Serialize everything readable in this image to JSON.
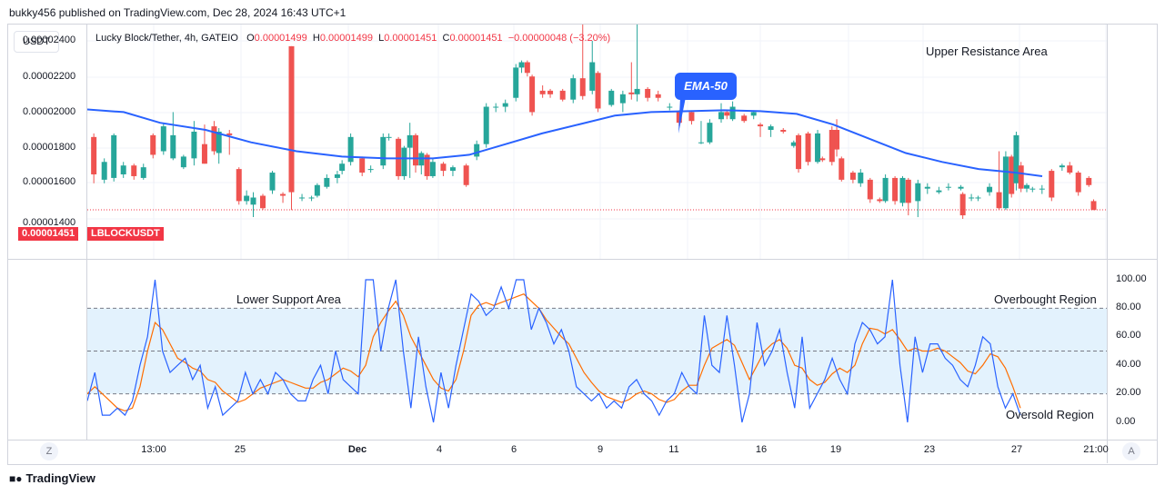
{
  "header": {
    "publisher_line": "bukky456 published on TradingView.com, Dec 28, 2024 16:43 UTC+1"
  },
  "toolbar": {
    "currency_button": "USDT"
  },
  "legend": {
    "symbol": "Lucky Block/Tether, 4h, GATEIO",
    "o_label": "O",
    "o_val": "0.00001499",
    "h_label": "H",
    "h_val": "0.00001499",
    "l_label": "L",
    "l_val": "0.00001451",
    "c_label": "C",
    "c_val": "0.00001451",
    "change": "−0.00000048 (−3.20%)"
  },
  "price_axis": {
    "ticks": [
      "0.00002400",
      "0.00002200",
      "0.00002000",
      "0.00001800",
      "0.00001600",
      "0.00001400"
    ]
  },
  "last_price": {
    "value": "0.00001451",
    "symbol": "LBLOCKUSDT"
  },
  "annotations": {
    "upper_resistance": "Upper Resistance Area",
    "ema_label": "EMA-50",
    "lower_support": "Lower Support Area",
    "overbought": "Overbought Region",
    "oversold": "Oversold Region"
  },
  "osc_axis": {
    "ticks": [
      "100.00",
      "80.00",
      "60.00",
      "40.00",
      "20.00",
      "0.00"
    ]
  },
  "time_axis": {
    "ticks": [
      "13:00",
      "25",
      "Dec",
      "4",
      "6",
      "9",
      "11",
      "16",
      "19",
      "23",
      "27",
      "21:00"
    ]
  },
  "buttons": {
    "z": "Z",
    "a": "A"
  },
  "footer": {
    "brand": "TradingView"
  },
  "colors": {
    "up": "#26a69a",
    "down": "#ef5350",
    "ema": "#2962ff",
    "stoch_k": "#2962ff",
    "stoch_d": "#ff6d00",
    "band": "#e3f2fd"
  },
  "chart_data": [
    {
      "type": "candlestick",
      "title": "Lucky Block/Tether, 4h, GATEIO",
      "ylim": [
        1.35e-05,
        2.58e-05
      ],
      "ylabel": "",
      "series": [
        {
          "name": "EMA-50",
          "type": "line"
        }
      ]
    },
    {
      "type": "line",
      "ylim": [
        -5,
        108
      ],
      "bands": [
        20,
        50,
        80
      ]
    }
  ]
}
